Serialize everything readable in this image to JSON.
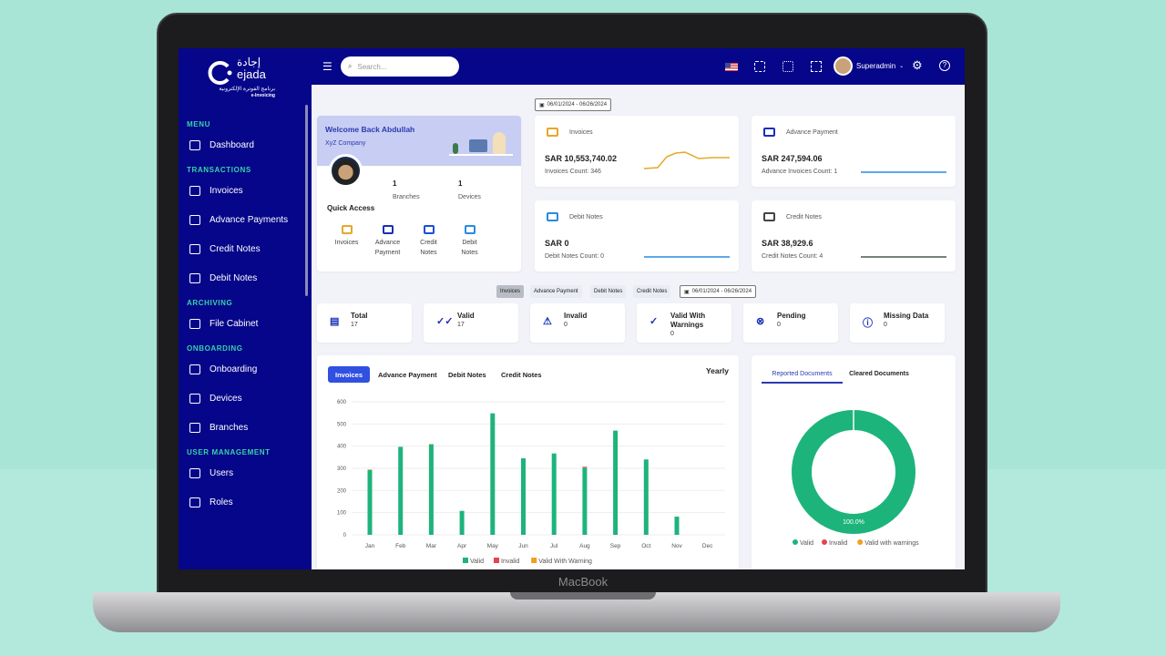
{
  "device_label": "MacBook",
  "brand": {
    "arabic_name": "إجادة",
    "name": "ejada",
    "tagline_ar": "برنامج الفوترة الإلكترونية",
    "tagline": "e-Invoicing"
  },
  "colors": {
    "sidebar": "#06068a",
    "accent": "#3050e0",
    "valid": "#1db47c",
    "invalid": "#e8424f",
    "warning": "#f0a020",
    "section": "#36d3a8"
  },
  "sidebar": {
    "sections": [
      {
        "title": "MENU",
        "items": [
          {
            "label": "Dashboard",
            "icon": "home-icon"
          }
        ]
      },
      {
        "title": "TRANSACTIONS",
        "items": [
          {
            "label": "Invoices",
            "icon": "invoice-icon"
          },
          {
            "label": "Advance Payments",
            "icon": "cash-icon"
          },
          {
            "label": "Credit Notes",
            "icon": "note-icon"
          },
          {
            "label": "Debit Notes",
            "icon": "card-icon"
          }
        ]
      },
      {
        "title": "ARCHIVING",
        "items": [
          {
            "label": "File Cabinet",
            "icon": "file-cabinet-icon"
          }
        ]
      },
      {
        "title": "ONBOARDING",
        "items": [
          {
            "label": "Onboarding",
            "icon": "monitor-icon"
          },
          {
            "label": "Devices",
            "icon": "devices-icon"
          },
          {
            "label": "Branches",
            "icon": "building-icon"
          }
        ]
      },
      {
        "title": "USER MANAGEMENT",
        "items": [
          {
            "label": "Users",
            "icon": "user-icon"
          },
          {
            "label": "Roles",
            "icon": "user-check-icon"
          }
        ]
      }
    ]
  },
  "topbar": {
    "search_placeholder": "Search...",
    "user": "Superadmin"
  },
  "welcome": {
    "title": "Welcome Back Abdullah",
    "company": "XyZ Company",
    "branches_value": "1",
    "branches_label": "Branches",
    "devices_value": "1",
    "devices_label": "Devices",
    "quick_access_title": "Quick Access",
    "quick_access": [
      {
        "label": "Invoices",
        "icon": "invoice-icon",
        "color": "#e5a82a"
      },
      {
        "label": "Advance Payment",
        "icon": "cash-icon",
        "color": "#1a2fb8"
      },
      {
        "label": "Credit Notes",
        "icon": "card-icon",
        "color": "#1a4fd8"
      },
      {
        "label": "Debit Notes",
        "icon": "note-icon",
        "color": "#2a8ae0"
      }
    ]
  },
  "date_range": "06/01/2024 - 06/26/2024",
  "summary_cards": [
    {
      "title": "Invoices",
      "amount": "SAR 10,553,740.02",
      "count": "Invoices Count: 346",
      "color": "#e5a82a"
    },
    {
      "title": "Advance Payment",
      "amount": "SAR 247,594.06",
      "count": "Advance Invoices Count: 1",
      "color": "#2a8ae0"
    },
    {
      "title": "Debit Notes",
      "amount": "SAR 0",
      "count": "Debit Notes Count: 0",
      "color": "#2a8ae0"
    },
    {
      "title": "Credit Notes",
      "amount": "SAR 38,929.6",
      "count": "Credit Notes Count: 4",
      "color": "#4a5a4a"
    }
  ],
  "filter_tabs": [
    "Invoices",
    "Advance Payment",
    "Debit Notes",
    "Credit Notes"
  ],
  "filter_date_range": "06/01/2024 - 06/26/2024",
  "status_cards": [
    {
      "label": "Total",
      "value": "17",
      "icon": "document-icon",
      "glyph": "▤"
    },
    {
      "label": "Valid",
      "value": "17",
      "icon": "double-check-icon",
      "glyph": "✓✓"
    },
    {
      "label": "Invalid",
      "value": "0",
      "icon": "warning-icon",
      "glyph": "⚠"
    },
    {
      "label": "Valid With Warnings",
      "value": "0",
      "icon": "check-icon",
      "glyph": "✓"
    },
    {
      "label": "Pending",
      "value": "0",
      "icon": "x-circle-icon",
      "glyph": "⊗"
    },
    {
      "label": "Missing Data",
      "value": "0",
      "icon": "info-icon",
      "glyph": "ⓘ"
    }
  ],
  "chart_tabs": [
    "Invoices",
    "Advance Payment",
    "Debit Notes",
    "Credit Notes"
  ],
  "period": "Yearly",
  "donut_tabs": [
    "Reported Documents",
    "Cleared Documents"
  ],
  "chart_data": [
    {
      "type": "bar",
      "stacked": true,
      "categories": [
        "Jan",
        "Feb",
        "Mar",
        "Apr",
        "May",
        "Jun",
        "Jul",
        "Aug",
        "Sep",
        "Oct",
        "Nov",
        "Dec"
      ],
      "series": [
        {
          "name": "Valid",
          "color": "#1db47c",
          "values": [
            292,
            397,
            408,
            108,
            548,
            345,
            367,
            303,
            470,
            340,
            82,
            0
          ]
        },
        {
          "name": "Invalid",
          "color": "#e8424f",
          "values": [
            0,
            0,
            0,
            0,
            0,
            0,
            0,
            4,
            0,
            0,
            0,
            0
          ]
        },
        {
          "name": "Valid With Warning",
          "color": "#f0a020",
          "values": [
            3,
            0,
            2,
            0,
            0,
            0,
            0,
            0,
            0,
            0,
            0,
            0
          ]
        }
      ],
      "yticks": [
        0,
        100,
        200,
        300,
        400,
        500,
        600
      ],
      "ylim": [
        0,
        600
      ],
      "grid": true,
      "legend": "bottom"
    },
    {
      "type": "pie",
      "donut": true,
      "labels": [
        "Valid",
        "Invalid",
        "Valid with warnings"
      ],
      "values": [
        100,
        0,
        0
      ],
      "colors": [
        "#1db47c",
        "#e8424f",
        "#f0a020"
      ],
      "data_label": "100.0%",
      "legend": "bottom"
    }
  ]
}
